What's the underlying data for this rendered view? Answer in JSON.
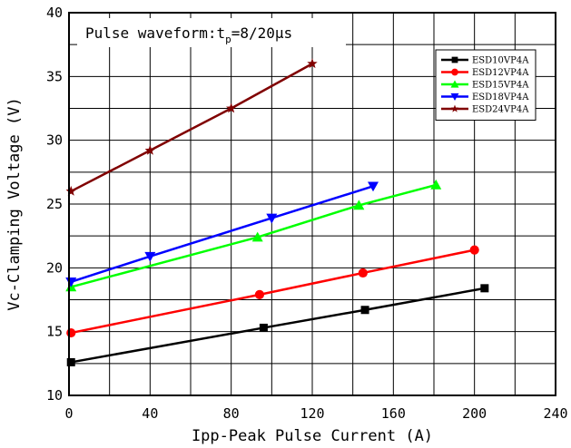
{
  "chart_data": {
    "type": "line",
    "annotation": {
      "prefix": "Pulse waveform:t",
      "subscript": "p",
      "suffix": "=8/20μs"
    },
    "xlabel": "Ipp-Peak Pulse Current (A)",
    "ylabel": "Vc-Clamping Voltage (V)",
    "xlim": [
      0,
      240
    ],
    "ylim": [
      10,
      40
    ],
    "x_ticks": [
      0,
      40,
      80,
      120,
      160,
      200,
      240
    ],
    "y_ticks": [
      10,
      15,
      20,
      25,
      30,
      35,
      40
    ],
    "x_grid_step": 20,
    "y_grid_step": 2.5,
    "grid": true,
    "legend_position": "top-right",
    "series": [
      {
        "name": "ESD10VP4A",
        "color": "#000000",
        "marker": "square",
        "points": [
          [
            1,
            12.6
          ],
          [
            96,
            15.3
          ],
          [
            146,
            16.7
          ],
          [
            205,
            18.4
          ]
        ]
      },
      {
        "name": "ESD12VP4A",
        "color": "#ff0000",
        "marker": "circle",
        "points": [
          [
            1,
            14.9
          ],
          [
            94,
            17.9
          ],
          [
            145,
            19.6
          ],
          [
            200,
            21.4
          ]
        ]
      },
      {
        "name": "ESD15VP4A",
        "color": "#00ff00",
        "marker": "triangle-up",
        "points": [
          [
            1,
            18.5
          ],
          [
            93,
            22.4
          ],
          [
            143,
            24.9
          ],
          [
            181,
            26.5
          ]
        ]
      },
      {
        "name": "ESD18VP4A",
        "color": "#0000ff",
        "marker": "triangle-down",
        "points": [
          [
            1,
            18.9
          ],
          [
            40,
            20.9
          ],
          [
            100,
            23.9
          ],
          [
            150,
            26.4
          ]
        ]
      },
      {
        "name": "ESD24VP4A",
        "color": "#800000",
        "marker": "star",
        "points": [
          [
            1,
            26.0
          ],
          [
            40,
            29.2
          ],
          [
            80,
            32.5
          ],
          [
            120,
            36.0
          ]
        ]
      }
    ]
  }
}
